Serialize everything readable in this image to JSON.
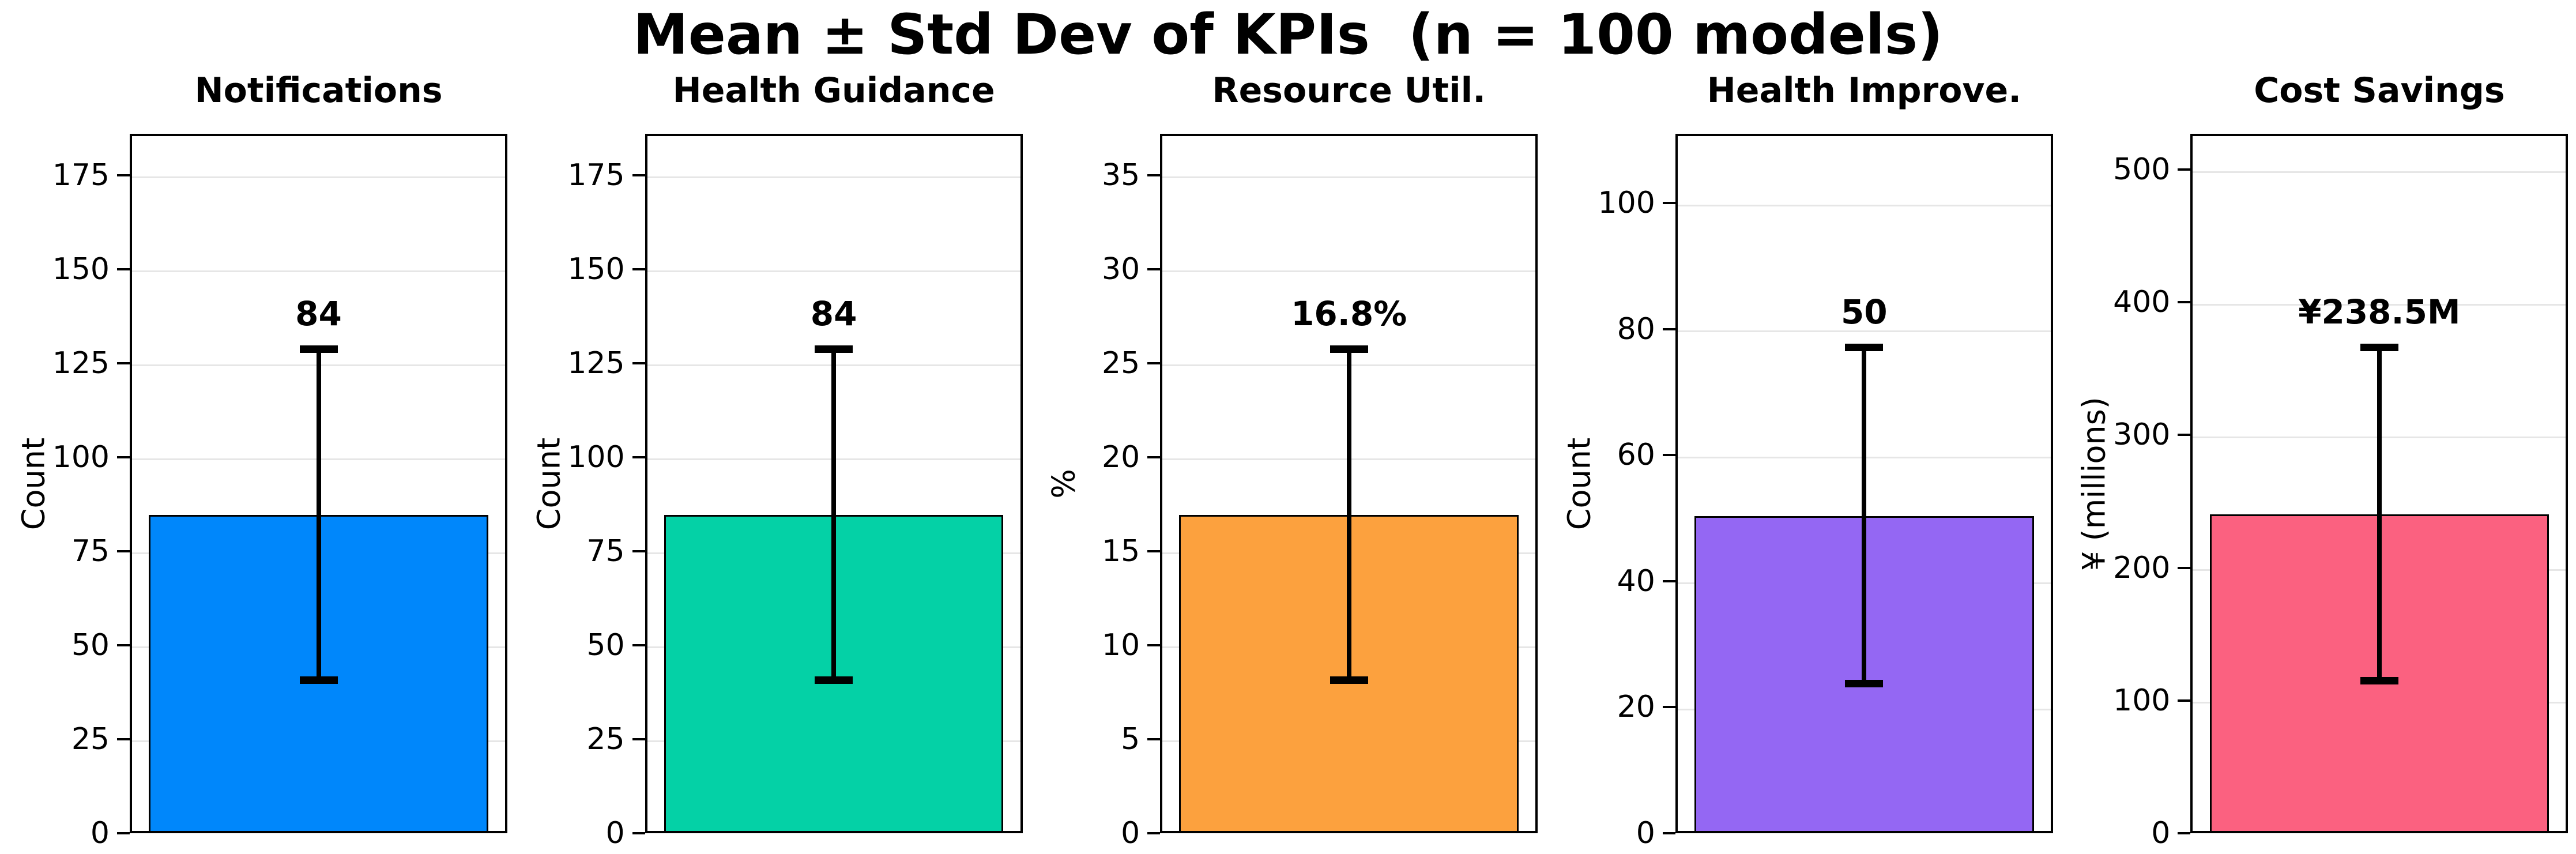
{
  "figure_title": "Mean ± Std Dev of KPIs  (n = 100 models)",
  "chart_data": {
    "type": "bar",
    "title": "Mean ± Std Dev of KPIs  (n = 100 models)",
    "n_models": 100,
    "grid": true,
    "errorbar_color": "#000000",
    "background_color": "#ffffff",
    "panels": [
      {
        "title": "Notifications",
        "ylabel": "Count",
        "value_label": "84",
        "mean": 84,
        "std": 44,
        "err_low": 40,
        "err_high": 128,
        "bar_color": "#0087FB",
        "yticks": [
          0,
          25,
          50,
          75,
          100,
          125,
          150,
          175
        ],
        "ylim": [
          0,
          186
        ]
      },
      {
        "title": "Health Guidance",
        "ylabel": "Count",
        "value_label": "84",
        "mean": 84,
        "std": 44,
        "err_low": 40,
        "err_high": 128,
        "bar_color": "#04D1A6",
        "yticks": [
          0,
          25,
          50,
          75,
          100,
          125,
          150,
          175
        ],
        "ylim": [
          0,
          186
        ]
      },
      {
        "title": "Resource Util.",
        "ylabel": "%",
        "value_label": "16.8%",
        "mean": 16.8,
        "std": 8.8,
        "err_low": 8.0,
        "err_high": 25.6,
        "bar_color": "#FCA13E",
        "yticks": [
          0,
          5,
          10,
          15,
          20,
          25,
          30,
          35
        ],
        "ylim": [
          0,
          37.2
        ]
      },
      {
        "title": "Health Improve.",
        "ylabel": "Count",
        "value_label": "50",
        "mean": 50,
        "std": 26.7,
        "err_low": 23.3,
        "err_high": 76.7,
        "bar_color": "#9467F3",
        "yticks": [
          0,
          20,
          40,
          60,
          80,
          100
        ],
        "ylim": [
          0,
          111
        ]
      },
      {
        "title": "Cost Savings",
        "ylabel": "¥ (millions)",
        "value_label": "¥238.5M",
        "mean": 238.5,
        "std": 125.5,
        "err_low": 113,
        "err_high": 364,
        "bar_color": "#FB6180",
        "yticks": [
          0,
          100,
          200,
          300,
          400,
          500
        ],
        "ylim": [
          0,
          527
        ]
      }
    ]
  }
}
